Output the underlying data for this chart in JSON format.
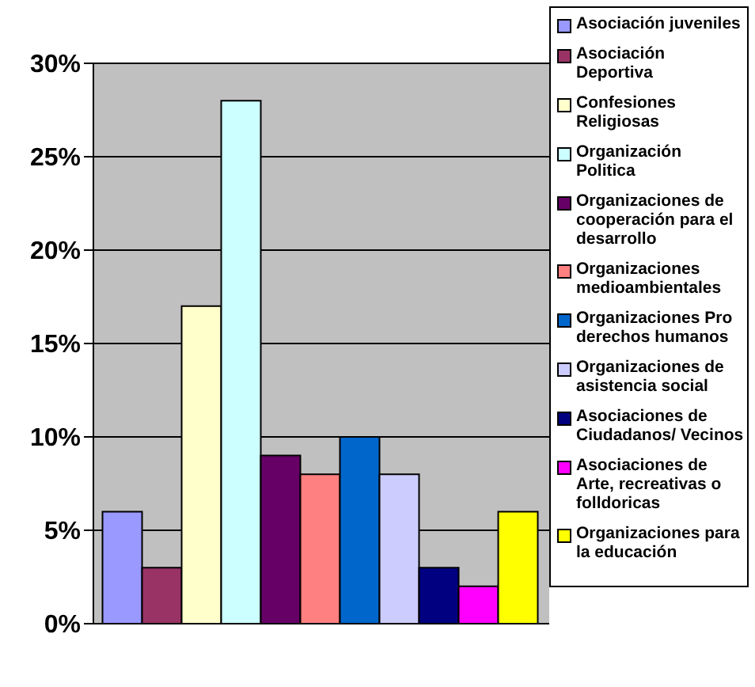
{
  "chart_data": {
    "type": "bar",
    "categories": [
      null
    ],
    "series": [
      {
        "name": "Asociación juveniles",
        "color": "#9999ff",
        "values": [
          6
        ]
      },
      {
        "name": "Asociación Deportiva",
        "color": "#993366",
        "values": [
          3
        ]
      },
      {
        "name": "Confesiones Religiosas",
        "color": "#ffffcc",
        "values": [
          17
        ]
      },
      {
        "name": " Organización Politica",
        "color": "#ccffff",
        "values": [
          28
        ]
      },
      {
        "name": " Organizaciones de cooperación para el desarrollo",
        "color": "#660066",
        "values": [
          9
        ]
      },
      {
        "name": "Organizaciones medioambientales",
        "color": "#ff8080",
        "values": [
          8
        ]
      },
      {
        "name": "Organizaciones Pro derechos humanos",
        "color": "#0066cc",
        "values": [
          10
        ]
      },
      {
        "name": "Organizaciones de asistencia social",
        "color": "#ccccff",
        "values": [
          8
        ]
      },
      {
        "name": "Asociaciones de Ciudadanos/ Vecinos",
        "color": "#000080",
        "values": [
          3
        ]
      },
      {
        "name": "Asociaciones de Arte, recreativas o folldoricas",
        "color": "#ff00ff",
        "values": [
          2
        ]
      },
      {
        "name": "Organizaciones para la educación",
        "color": "#ffff00",
        "values": [
          6
        ]
      }
    ],
    "ylim": [
      0,
      30
    ],
    "yticks": [
      {
        "value": 0,
        "label": "0%"
      },
      {
        "value": 5,
        "label": "5%"
      },
      {
        "value": 10,
        "label": "10%"
      },
      {
        "value": 15,
        "label": "15%"
      },
      {
        "value": 20,
        "label": "20%"
      },
      {
        "value": 25,
        "label": "25%"
      },
      {
        "value": 30,
        "label": "30%"
      }
    ],
    "grid": "y",
    "legend": "right"
  }
}
